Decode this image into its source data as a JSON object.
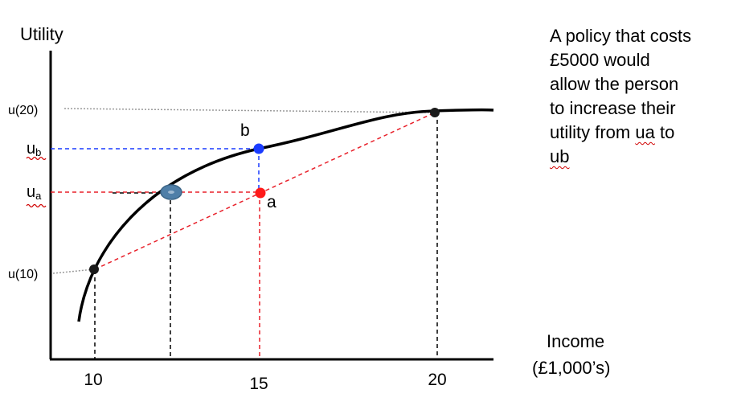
{
  "axes": {
    "y_label": "Utility",
    "x_label_line1": "Income",
    "x_label_line2": "(£1,000’s)",
    "x_ticks": [
      "10",
      "15",
      "20"
    ]
  },
  "y_ticks": {
    "u20": "u(20)",
    "ub_main": "u",
    "ub_sub": "b",
    "ua_main": "u",
    "ua_sub": "a",
    "u10": "u(10)"
  },
  "points": {
    "b_label": "b",
    "a_label": "a"
  },
  "colors": {
    "curve": "#000000",
    "chord": "#e8202a",
    "point_a": "#ff1a1a",
    "point_b": "#1a3cff",
    "point_ce": "#4f7fa8",
    "guide_black": "#000000",
    "guide_grey": "#9a9a9a",
    "guide_blue": "#1a3cff"
  },
  "annotation": {
    "line1": "A policy that costs",
    "line2": "£5000 would",
    "line3": "allow the person",
    "line4": "to increase their",
    "line5_a": "utility from ",
    "line5_ua": "ua",
    "line5_b": " to",
    "line6_ub": "ub"
  }
}
